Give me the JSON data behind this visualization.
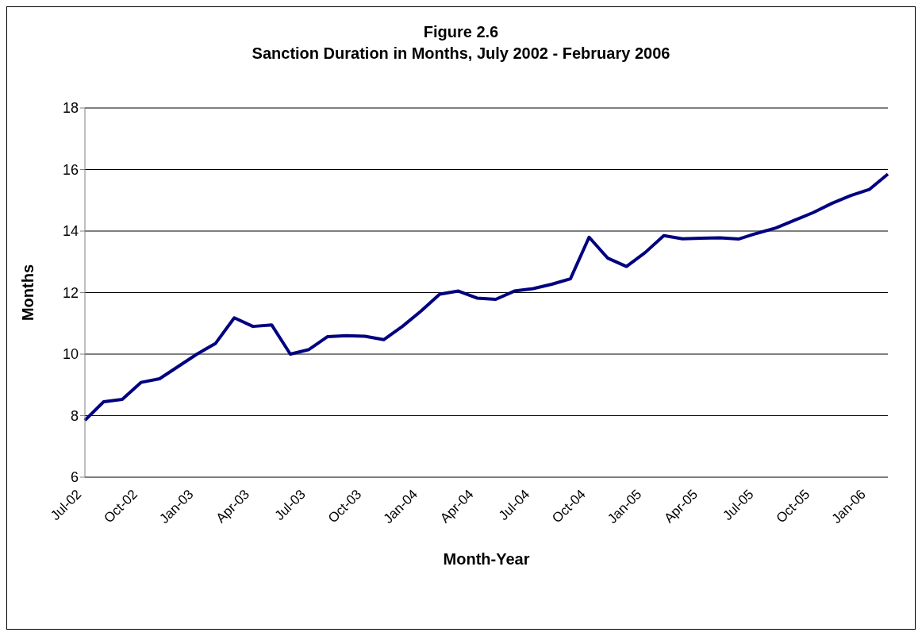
{
  "chart_data": {
    "type": "line",
    "title": "Figure 2.6",
    "subtitle": "Sanction Duration in Months, July 2002 - February 2006",
    "xlabel": "Month-Year",
    "ylabel": "Months",
    "categories": [
      "Jul-02",
      null,
      null,
      "Oct-02",
      null,
      null,
      "Jan-03",
      null,
      null,
      "Apr-03",
      null,
      null,
      "Jul-03",
      null,
      null,
      "Oct-03",
      null,
      null,
      "Jan-04",
      null,
      null,
      "Apr-04",
      null,
      null,
      "Jul-04",
      null,
      null,
      "Oct-04",
      null,
      null,
      "Jan-05",
      null,
      null,
      "Apr-05",
      null,
      null,
      "Jul-05",
      null,
      null,
      "Oct-05",
      null,
      null,
      "Jan-06",
      null
    ],
    "series": [
      {
        "color": "#000080",
        "values": [
          7.85,
          8.45,
          8.53,
          9.08,
          9.2,
          9.6,
          10.0,
          10.35,
          11.18,
          10.9,
          10.95,
          10.0,
          10.15,
          10.57,
          10.6,
          10.58,
          10.47,
          10.9,
          11.4,
          11.95,
          12.05,
          11.82,
          11.78,
          12.05,
          12.13,
          12.27,
          12.45,
          13.8,
          13.12,
          12.85,
          13.3,
          13.85,
          13.75,
          13.77,
          13.78,
          13.74,
          13.93,
          14.1,
          14.35,
          14.6,
          14.9,
          15.15,
          15.35,
          15.85
        ]
      }
    ],
    "ylim": [
      6,
      18
    ],
    "yticks": [
      6,
      8,
      10,
      12,
      14,
      16,
      18
    ],
    "grid": "y",
    "legend": false,
    "marker": "none",
    "line_style": "solid"
  }
}
